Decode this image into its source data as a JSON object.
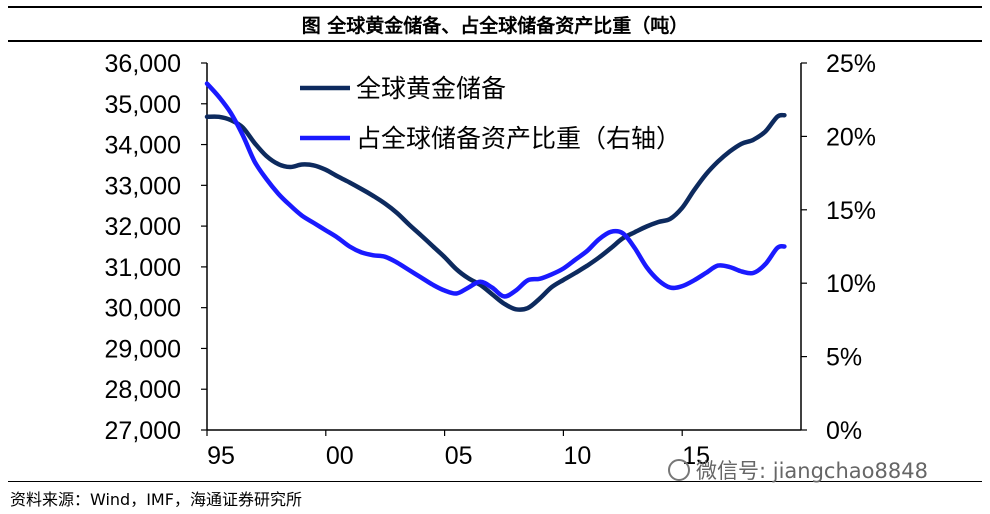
{
  "header": {
    "title": "图 全球黄金储备、占全球储备资产比重（吨）"
  },
  "footer": {
    "source": "资料来源：Wind，IMF，海通证券研究所"
  },
  "watermark": {
    "text": "微信号: jiangchao8848",
    "icon": "wechat-icon"
  },
  "chart_data": {
    "type": "line",
    "title": "图 全球黄金储备、占全球储备资产比重（吨）",
    "x_ticks": [
      "95",
      "00",
      "05",
      "10",
      "15"
    ],
    "x_tick_values": [
      1995,
      2000,
      2005,
      2010,
      2015
    ],
    "xlim": [
      1995,
      2020
    ],
    "y_left": {
      "range": [
        27000,
        36000
      ],
      "ticks": [
        27000,
        28000,
        29000,
        30000,
        31000,
        32000,
        33000,
        34000,
        35000,
        36000
      ],
      "tick_labels": [
        "27,000",
        "28,000",
        "29,000",
        "30,000",
        "31,000",
        "32,000",
        "33,000",
        "34,000",
        "35,000",
        "36,000"
      ]
    },
    "y_right": {
      "range": [
        0,
        25
      ],
      "ticks": [
        0,
        5,
        10,
        15,
        20,
        25
      ],
      "tick_labels": [
        "0%",
        "5%",
        "10%",
        "15%",
        "20%",
        "25%"
      ]
    },
    "grid": false,
    "legend_position": "top-center",
    "series": [
      {
        "name": "全球黄金储备",
        "axis": "left",
        "color": "#0d2a5e",
        "points": [
          [
            1995.0,
            34680
          ],
          [
            1995.5,
            34680
          ],
          [
            1996.0,
            34600
          ],
          [
            1996.5,
            34420
          ],
          [
            1997.0,
            34040
          ],
          [
            1997.5,
            33720
          ],
          [
            1998.0,
            33520
          ],
          [
            1998.5,
            33450
          ],
          [
            1999.0,
            33510
          ],
          [
            1999.5,
            33490
          ],
          [
            2000.0,
            33380
          ],
          [
            2000.5,
            33220
          ],
          [
            2001.0,
            33070
          ],
          [
            2001.5,
            32910
          ],
          [
            2002.0,
            32740
          ],
          [
            2002.5,
            32550
          ],
          [
            2003.0,
            32320
          ],
          [
            2003.5,
            32040
          ],
          [
            2004.0,
            31780
          ],
          [
            2004.5,
            31510
          ],
          [
            2005.0,
            31240
          ],
          [
            2005.5,
            30940
          ],
          [
            2006.0,
            30720
          ],
          [
            2006.5,
            30560
          ],
          [
            2007.0,
            30330
          ],
          [
            2007.5,
            30100
          ],
          [
            2008.0,
            29960
          ],
          [
            2008.5,
            29990
          ],
          [
            2009.0,
            30220
          ],
          [
            2009.5,
            30500
          ],
          [
            2010.0,
            30680
          ],
          [
            2010.5,
            30850
          ],
          [
            2011.0,
            31030
          ],
          [
            2011.5,
            31230
          ],
          [
            2012.0,
            31460
          ],
          [
            2012.5,
            31700
          ],
          [
            2013.0,
            31850
          ],
          [
            2013.5,
            31990
          ],
          [
            2014.0,
            32100
          ],
          [
            2014.5,
            32180
          ],
          [
            2015.0,
            32450
          ],
          [
            2015.5,
            32880
          ],
          [
            2016.0,
            33270
          ],
          [
            2016.5,
            33580
          ],
          [
            2017.0,
            33830
          ],
          [
            2017.5,
            34020
          ],
          [
            2018.0,
            34120
          ],
          [
            2018.5,
            34320
          ],
          [
            2019.0,
            34680
          ],
          [
            2019.3,
            34720
          ]
        ]
      },
      {
        "name": "占全球储备资产比重（右轴）",
        "axis": "right",
        "color": "#1a1aff",
        "points": [
          [
            1995.0,
            23.6
          ],
          [
            1995.5,
            22.7
          ],
          [
            1996.0,
            21.6
          ],
          [
            1996.5,
            20.1
          ],
          [
            1997.0,
            18.3
          ],
          [
            1997.5,
            17.1
          ],
          [
            1998.0,
            16.1
          ],
          [
            1998.5,
            15.3
          ],
          [
            1999.0,
            14.6
          ],
          [
            1999.5,
            14.1
          ],
          [
            2000.0,
            13.6
          ],
          [
            2000.5,
            13.1
          ],
          [
            2001.0,
            12.5
          ],
          [
            2001.5,
            12.1
          ],
          [
            2002.0,
            11.9
          ],
          [
            2002.5,
            11.8
          ],
          [
            2003.0,
            11.4
          ],
          [
            2003.5,
            10.9
          ],
          [
            2004.0,
            10.4
          ],
          [
            2004.5,
            9.9
          ],
          [
            2005.0,
            9.5
          ],
          [
            2005.5,
            9.3
          ],
          [
            2006.0,
            9.7
          ],
          [
            2006.5,
            10.1
          ],
          [
            2007.0,
            9.7
          ],
          [
            2007.5,
            9.1
          ],
          [
            2008.0,
            9.5
          ],
          [
            2008.5,
            10.2
          ],
          [
            2009.0,
            10.3
          ],
          [
            2009.5,
            10.6
          ],
          [
            2010.0,
            11.0
          ],
          [
            2010.5,
            11.6
          ],
          [
            2011.0,
            12.2
          ],
          [
            2011.5,
            13.0
          ],
          [
            2012.0,
            13.5
          ],
          [
            2012.5,
            13.4
          ],
          [
            2013.0,
            12.4
          ],
          [
            2013.5,
            11.1
          ],
          [
            2014.0,
            10.2
          ],
          [
            2014.5,
            9.7
          ],
          [
            2015.0,
            9.8
          ],
          [
            2015.5,
            10.2
          ],
          [
            2016.0,
            10.7
          ],
          [
            2016.5,
            11.2
          ],
          [
            2017.0,
            11.1
          ],
          [
            2017.5,
            10.8
          ],
          [
            2018.0,
            10.7
          ],
          [
            2018.5,
            11.3
          ],
          [
            2019.0,
            12.4
          ],
          [
            2019.3,
            12.5
          ]
        ]
      }
    ]
  }
}
